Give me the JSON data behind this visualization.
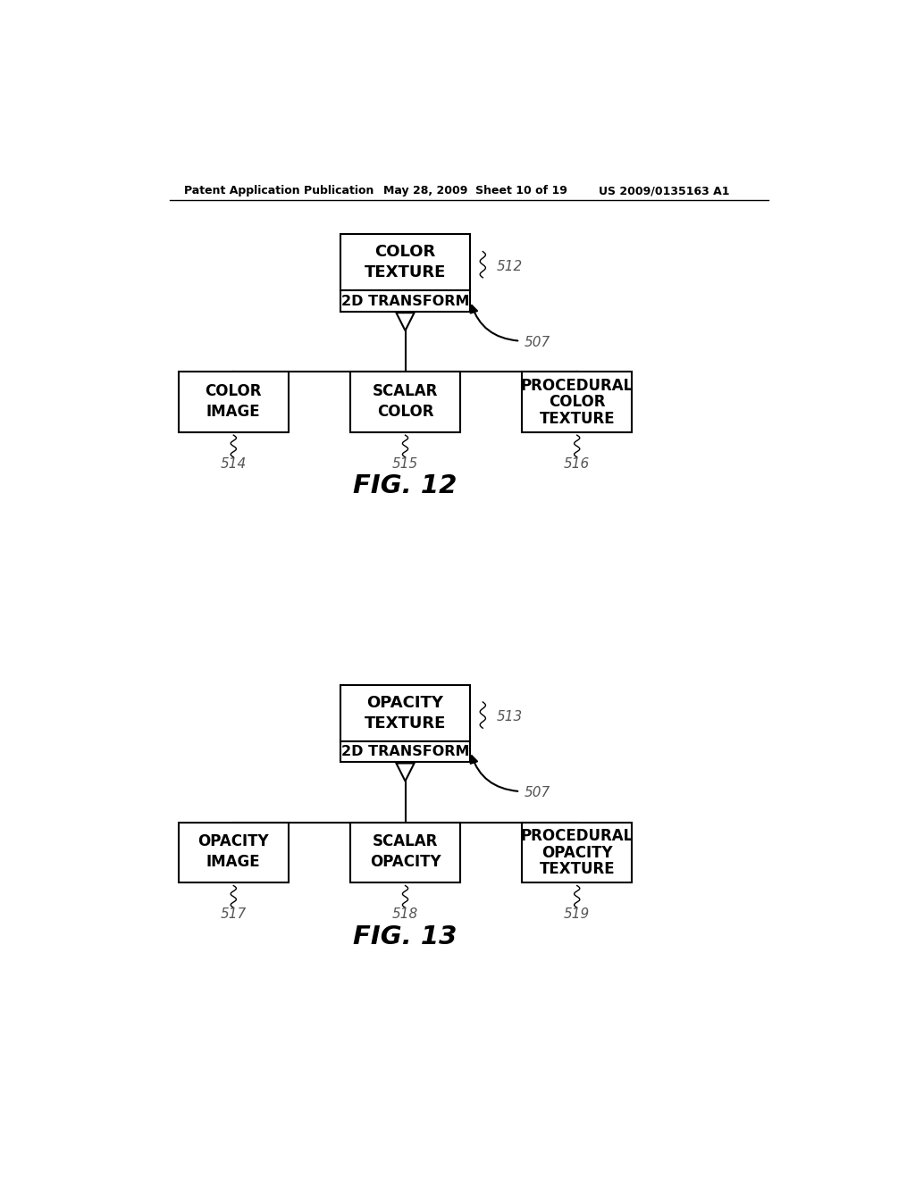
{
  "bg_color": "#ffffff",
  "header_text": "Patent Application Publication",
  "header_date": "May 28, 2009  Sheet 10 of 19",
  "header_patent": "US 2009/0135163 A1",
  "fig12_label": "FIG. 12",
  "fig13_label": "FIG. 13",
  "fig12": {
    "top_box_line1": "COLOR",
    "top_box_line2": "TEXTURE",
    "top_box_sub": "2D TRANSFORM",
    "top_label": "512",
    "arrow_label": "507",
    "children": [
      {
        "line1": "COLOR",
        "line2": "IMAGE",
        "label": "514"
      },
      {
        "line1": "SCALAR",
        "line2": "COLOR",
        "label": "515"
      },
      {
        "line1": "PROCEDURAL",
        "line2": "COLOR",
        "line3": "TEXTURE",
        "label": "516"
      }
    ]
  },
  "fig13": {
    "top_box_line1": "OPACITY",
    "top_box_line2": "TEXTURE",
    "top_box_sub": "2D TRANSFORM",
    "top_label": "513",
    "arrow_label": "507",
    "children": [
      {
        "line1": "OPACITY",
        "line2": "IMAGE",
        "label": "517"
      },
      {
        "line1": "SCALAR",
        "line2": "OPACITY",
        "label": "518"
      },
      {
        "line1": "PROCEDURAL",
        "line2": "OPACITY",
        "line3": "TEXTURE",
        "label": "519"
      }
    ]
  }
}
